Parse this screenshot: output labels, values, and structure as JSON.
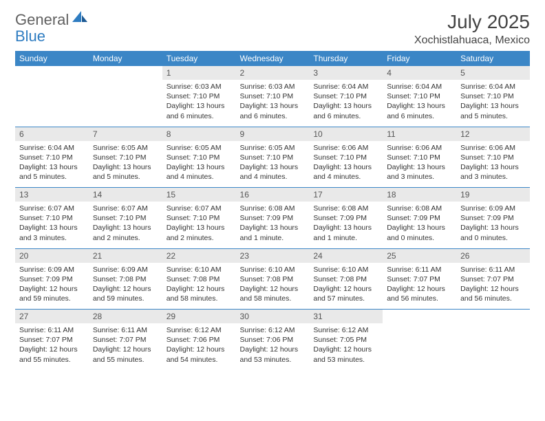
{
  "logo": {
    "text1": "General",
    "text2": "Blue"
  },
  "title": "July 2025",
  "location": "Xochistlahuaca, Mexico",
  "colors": {
    "header_bg": "#3b86c6",
    "header_text": "#ffffff",
    "daynum_bg": "#e9e9e9",
    "accent": "#2e7cc1",
    "text": "#333333"
  },
  "day_headers": [
    "Sunday",
    "Monday",
    "Tuesday",
    "Wednesday",
    "Thursday",
    "Friday",
    "Saturday"
  ],
  "weeks": [
    [
      null,
      null,
      {
        "n": "1",
        "sr": "Sunrise: 6:03 AM",
        "ss": "Sunset: 7:10 PM",
        "dl": "Daylight: 13 hours and 6 minutes."
      },
      {
        "n": "2",
        "sr": "Sunrise: 6:03 AM",
        "ss": "Sunset: 7:10 PM",
        "dl": "Daylight: 13 hours and 6 minutes."
      },
      {
        "n": "3",
        "sr": "Sunrise: 6:04 AM",
        "ss": "Sunset: 7:10 PM",
        "dl": "Daylight: 13 hours and 6 minutes."
      },
      {
        "n": "4",
        "sr": "Sunrise: 6:04 AM",
        "ss": "Sunset: 7:10 PM",
        "dl": "Daylight: 13 hours and 6 minutes."
      },
      {
        "n": "5",
        "sr": "Sunrise: 6:04 AM",
        "ss": "Sunset: 7:10 PM",
        "dl": "Daylight: 13 hours and 5 minutes."
      }
    ],
    [
      {
        "n": "6",
        "sr": "Sunrise: 6:04 AM",
        "ss": "Sunset: 7:10 PM",
        "dl": "Daylight: 13 hours and 5 minutes."
      },
      {
        "n": "7",
        "sr": "Sunrise: 6:05 AM",
        "ss": "Sunset: 7:10 PM",
        "dl": "Daylight: 13 hours and 5 minutes."
      },
      {
        "n": "8",
        "sr": "Sunrise: 6:05 AM",
        "ss": "Sunset: 7:10 PM",
        "dl": "Daylight: 13 hours and 4 minutes."
      },
      {
        "n": "9",
        "sr": "Sunrise: 6:05 AM",
        "ss": "Sunset: 7:10 PM",
        "dl": "Daylight: 13 hours and 4 minutes."
      },
      {
        "n": "10",
        "sr": "Sunrise: 6:06 AM",
        "ss": "Sunset: 7:10 PM",
        "dl": "Daylight: 13 hours and 4 minutes."
      },
      {
        "n": "11",
        "sr": "Sunrise: 6:06 AM",
        "ss": "Sunset: 7:10 PM",
        "dl": "Daylight: 13 hours and 3 minutes."
      },
      {
        "n": "12",
        "sr": "Sunrise: 6:06 AM",
        "ss": "Sunset: 7:10 PM",
        "dl": "Daylight: 13 hours and 3 minutes."
      }
    ],
    [
      {
        "n": "13",
        "sr": "Sunrise: 6:07 AM",
        "ss": "Sunset: 7:10 PM",
        "dl": "Daylight: 13 hours and 3 minutes."
      },
      {
        "n": "14",
        "sr": "Sunrise: 6:07 AM",
        "ss": "Sunset: 7:10 PM",
        "dl": "Daylight: 13 hours and 2 minutes."
      },
      {
        "n": "15",
        "sr": "Sunrise: 6:07 AM",
        "ss": "Sunset: 7:10 PM",
        "dl": "Daylight: 13 hours and 2 minutes."
      },
      {
        "n": "16",
        "sr": "Sunrise: 6:08 AM",
        "ss": "Sunset: 7:09 PM",
        "dl": "Daylight: 13 hours and 1 minute."
      },
      {
        "n": "17",
        "sr": "Sunrise: 6:08 AM",
        "ss": "Sunset: 7:09 PM",
        "dl": "Daylight: 13 hours and 1 minute."
      },
      {
        "n": "18",
        "sr": "Sunrise: 6:08 AM",
        "ss": "Sunset: 7:09 PM",
        "dl": "Daylight: 13 hours and 0 minutes."
      },
      {
        "n": "19",
        "sr": "Sunrise: 6:09 AM",
        "ss": "Sunset: 7:09 PM",
        "dl": "Daylight: 13 hours and 0 minutes."
      }
    ],
    [
      {
        "n": "20",
        "sr": "Sunrise: 6:09 AM",
        "ss": "Sunset: 7:09 PM",
        "dl": "Daylight: 12 hours and 59 minutes."
      },
      {
        "n": "21",
        "sr": "Sunrise: 6:09 AM",
        "ss": "Sunset: 7:08 PM",
        "dl": "Daylight: 12 hours and 59 minutes."
      },
      {
        "n": "22",
        "sr": "Sunrise: 6:10 AM",
        "ss": "Sunset: 7:08 PM",
        "dl": "Daylight: 12 hours and 58 minutes."
      },
      {
        "n": "23",
        "sr": "Sunrise: 6:10 AM",
        "ss": "Sunset: 7:08 PM",
        "dl": "Daylight: 12 hours and 58 minutes."
      },
      {
        "n": "24",
        "sr": "Sunrise: 6:10 AM",
        "ss": "Sunset: 7:08 PM",
        "dl": "Daylight: 12 hours and 57 minutes."
      },
      {
        "n": "25",
        "sr": "Sunrise: 6:11 AM",
        "ss": "Sunset: 7:07 PM",
        "dl": "Daylight: 12 hours and 56 minutes."
      },
      {
        "n": "26",
        "sr": "Sunrise: 6:11 AM",
        "ss": "Sunset: 7:07 PM",
        "dl": "Daylight: 12 hours and 56 minutes."
      }
    ],
    [
      {
        "n": "27",
        "sr": "Sunrise: 6:11 AM",
        "ss": "Sunset: 7:07 PM",
        "dl": "Daylight: 12 hours and 55 minutes."
      },
      {
        "n": "28",
        "sr": "Sunrise: 6:11 AM",
        "ss": "Sunset: 7:07 PM",
        "dl": "Daylight: 12 hours and 55 minutes."
      },
      {
        "n": "29",
        "sr": "Sunrise: 6:12 AM",
        "ss": "Sunset: 7:06 PM",
        "dl": "Daylight: 12 hours and 54 minutes."
      },
      {
        "n": "30",
        "sr": "Sunrise: 6:12 AM",
        "ss": "Sunset: 7:06 PM",
        "dl": "Daylight: 12 hours and 53 minutes."
      },
      {
        "n": "31",
        "sr": "Sunrise: 6:12 AM",
        "ss": "Sunset: 7:05 PM",
        "dl": "Daylight: 12 hours and 53 minutes."
      },
      null,
      null
    ]
  ]
}
